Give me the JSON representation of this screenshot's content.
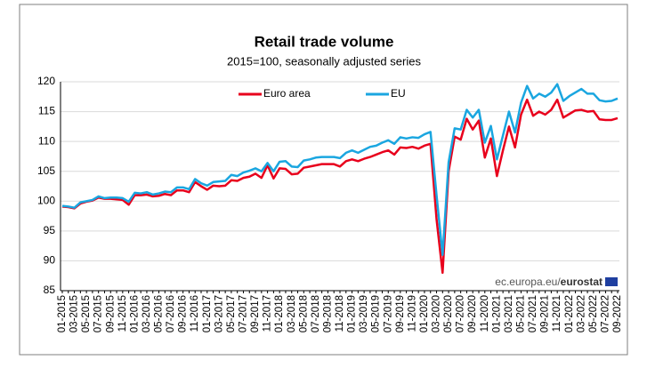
{
  "chart_data": {
    "type": "line",
    "title": "Retail trade volume",
    "subtitle": "2015=100, seasonally adjusted series",
    "source": {
      "prefix": "ec.europa.eu/",
      "brand": "eurostat"
    },
    "categories": [
      "01-2015",
      null,
      "03-2015",
      null,
      "05-2015",
      null,
      "07-2015",
      null,
      "09-2015",
      null,
      "11-2015",
      null,
      "01-2016",
      null,
      "03-2016",
      null,
      "05-2016",
      null,
      "07-2016",
      null,
      "09-2016",
      null,
      "11-2016",
      null,
      "01-2017",
      null,
      "03-2017",
      null,
      "05-2017",
      null,
      "07-2017",
      null,
      "09-2017",
      null,
      "11-2017",
      null,
      "01-2018",
      null,
      "03-2018",
      null,
      "05-2018",
      null,
      "07-2018",
      null,
      "09-2018",
      null,
      "11-2018",
      null,
      "01-2019",
      null,
      "03-2019",
      null,
      "05-2019",
      null,
      "07-2019",
      null,
      "09-2019",
      null,
      "11-2019",
      null,
      "01-2020",
      null,
      "03-2020",
      null,
      "05-2020",
      null,
      "07-2020",
      null,
      "09-2020",
      null,
      "11-2020",
      null,
      "01-2021",
      null,
      "03-2021",
      null,
      "05-2021",
      null,
      "07-2021",
      null,
      "09-2021",
      null,
      "11-2021",
      null,
      "01-2022",
      null,
      "03-2022",
      null,
      "05-2022",
      null,
      "07-2022",
      null,
      "09-2022"
    ],
    "series": [
      {
        "name": "Euro area",
        "color": "#e8001c",
        "values": [
          99.1,
          99.0,
          98.8,
          99.6,
          99.9,
          100.1,
          100.6,
          100.4,
          100.4,
          100.3,
          100.2,
          99.4,
          101.0,
          101.0,
          101.1,
          100.8,
          100.9,
          101.2,
          101.0,
          101.8,
          101.8,
          101.5,
          103.2,
          102.5,
          101.9,
          102.6,
          102.5,
          102.6,
          103.5,
          103.4,
          103.9,
          104.1,
          104.6,
          103.9,
          106.0,
          103.8,
          105.5,
          105.4,
          104.5,
          104.6,
          105.6,
          105.8,
          106.0,
          106.2,
          106.2,
          106.2,
          105.8,
          106.7,
          107.0,
          106.7,
          107.1,
          107.4,
          107.8,
          108.2,
          108.5,
          107.8,
          109.0,
          108.9,
          109.1,
          108.8,
          109.3,
          109.6,
          97.0,
          88.0,
          105.0,
          110.8,
          110.3,
          113.8,
          112.0,
          113.5,
          107.3,
          110.5,
          104.2,
          108.5,
          112.5,
          109.0,
          114.5,
          117.0,
          114.3,
          115.0,
          114.5,
          115.3,
          117.0,
          114.0,
          114.6,
          115.2,
          115.3,
          115.0,
          115.1,
          113.7,
          113.6,
          113.6,
          113.9
        ]
      },
      {
        "name": "EU",
        "color": "#1aa6e0",
        "values": [
          99.2,
          99.1,
          98.9,
          99.8,
          100.0,
          100.2,
          100.8,
          100.5,
          100.6,
          100.6,
          100.5,
          99.9,
          101.4,
          101.3,
          101.5,
          101.1,
          101.3,
          101.6,
          101.5,
          102.3,
          102.3,
          102.0,
          103.7,
          103.0,
          102.6,
          103.2,
          103.3,
          103.4,
          104.4,
          104.2,
          104.8,
          105.1,
          105.5,
          105.0,
          106.4,
          105.0,
          106.6,
          106.7,
          105.8,
          105.7,
          106.8,
          107.0,
          107.3,
          107.4,
          107.4,
          107.4,
          107.2,
          108.1,
          108.5,
          108.1,
          108.6,
          109.1,
          109.3,
          109.8,
          110.2,
          109.6,
          110.7,
          110.5,
          110.7,
          110.6,
          111.2,
          111.6,
          101.0,
          91.0,
          106.5,
          112.2,
          112.0,
          115.3,
          114.0,
          115.3,
          109.8,
          112.6,
          107.0,
          111.0,
          115.0,
          111.5,
          116.5,
          119.3,
          117.2,
          118.0,
          117.5,
          118.2,
          119.6,
          116.8,
          117.6,
          118.2,
          118.8,
          118.0,
          118.0,
          116.9,
          116.7,
          116.8,
          117.2
        ]
      }
    ],
    "ylim": [
      85,
      120
    ],
    "yticks": [
      85,
      90,
      95,
      100,
      105,
      110,
      115,
      120
    ],
    "grid": true
  }
}
